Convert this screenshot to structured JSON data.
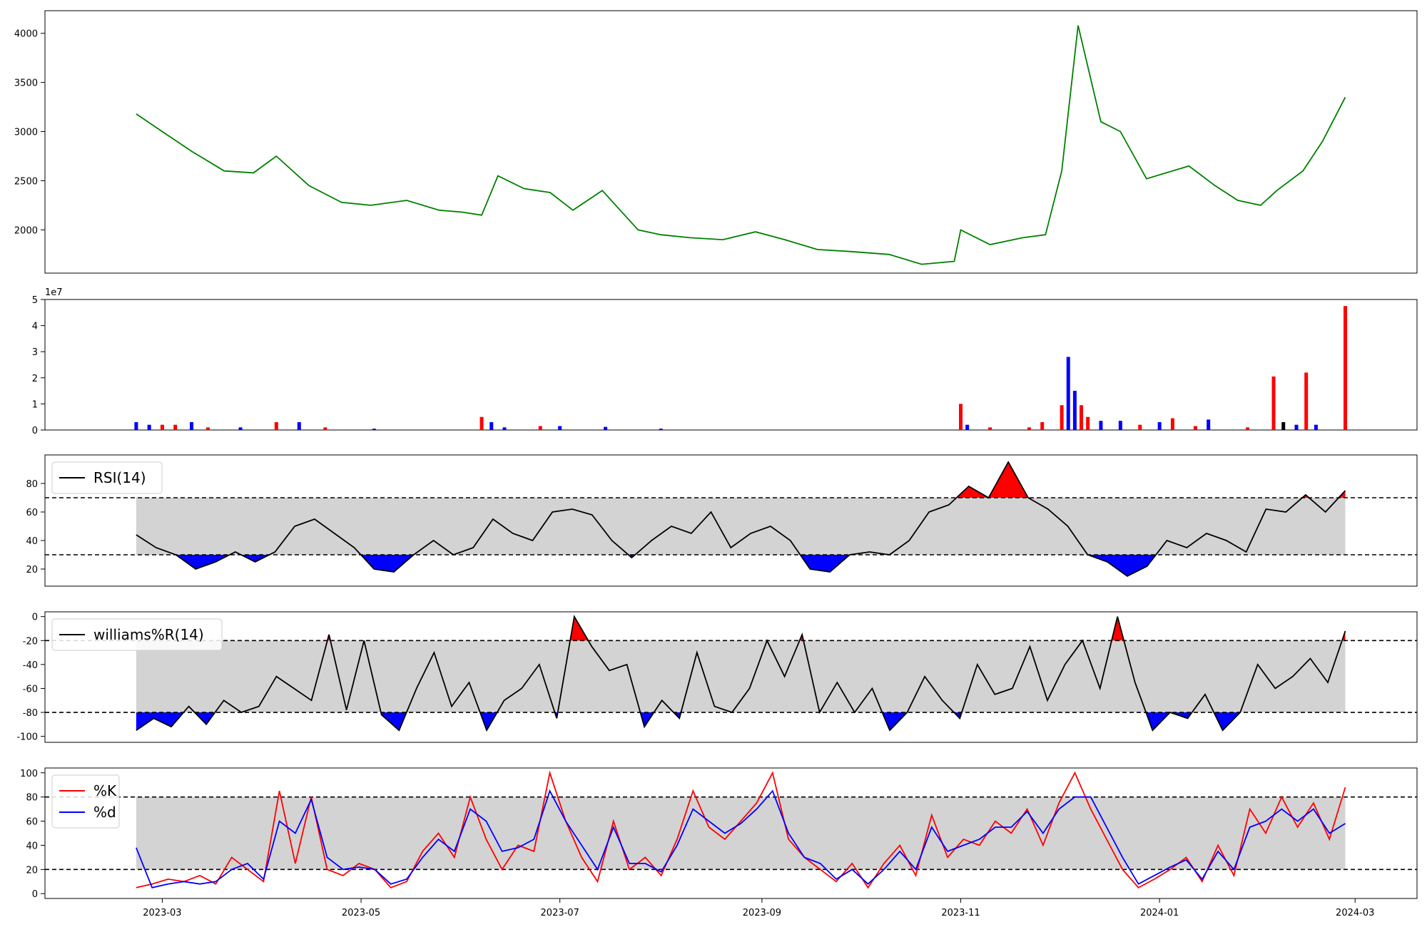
{
  "colors": {
    "price": "#008000",
    "up": "#ff0000",
    "down": "#0000ff",
    "neutral": "#000000",
    "band": "#d3d3d3",
    "k_line": "#ff0000",
    "d_line": "#0000ff"
  },
  "x_axis": {
    "tick_labels": [
      "2023-03",
      "2023-05",
      "2023-07",
      "2023-09",
      "2023-11",
      "2024-01",
      "2024-03"
    ]
  },
  "chart_data": [
    {
      "type": "line",
      "id": "price",
      "x": [
        "2023-02-21",
        "2023-03-01",
        "2023-03-10",
        "2023-03-20",
        "2023-03-29",
        "2023-04-05",
        "2023-04-15",
        "2023-04-25",
        "2023-05-04",
        "2023-05-15",
        "2023-05-25",
        "2023-06-01",
        "2023-06-07",
        "2023-06-12",
        "2023-06-20",
        "2023-06-28",
        "2023-07-05",
        "2023-07-14",
        "2023-07-25",
        "2023-08-01",
        "2023-08-10",
        "2023-08-20",
        "2023-08-30",
        "2023-09-08",
        "2023-09-18",
        "2023-09-28",
        "2023-10-10",
        "2023-10-20",
        "2023-10-30",
        "2023-11-01",
        "2023-11-10",
        "2023-11-20",
        "2023-11-27",
        "2023-12-02",
        "2023-12-07",
        "2023-12-14",
        "2023-12-20",
        "2023-12-28",
        "2024-01-10",
        "2024-01-18",
        "2024-01-25",
        "2024-02-01",
        "2024-02-06",
        "2024-02-14",
        "2024-02-20",
        "2024-02-27"
      ],
      "values": [
        3180,
        3000,
        2800,
        2600,
        2580,
        2750,
        2450,
        2280,
        2250,
        2300,
        2200,
        2180,
        2150,
        2550,
        2420,
        2380,
        2200,
        2400,
        2000,
        1950,
        1920,
        1900,
        1980,
        1900,
        1800,
        1780,
        1750,
        1650,
        1680,
        2000,
        1850,
        1920,
        1950,
        2600,
        4080,
        3100,
        3000,
        2520,
        2650,
        2450,
        2300,
        2250,
        2400,
        2600,
        2900,
        3350
      ],
      "yticks": [
        2000,
        2500,
        3000,
        3500,
        4000
      ],
      "ylim": [
        1560,
        4230
      ]
    },
    {
      "type": "bar",
      "id": "volume",
      "scale_label": "1e7",
      "yticks": [
        0,
        1,
        2,
        3,
        4,
        5
      ],
      "ylim": [
        0,
        5
      ],
      "ylabel": "",
      "bars": [
        {
          "x": "2023-02-21",
          "v": 0.3,
          "c": "down"
        },
        {
          "x": "2023-02-25",
          "v": 0.2,
          "c": "down"
        },
        {
          "x": "2023-03-01",
          "v": 0.2,
          "c": "up"
        },
        {
          "x": "2023-03-05",
          "v": 0.2,
          "c": "up"
        },
        {
          "x": "2023-03-10",
          "v": 0.3,
          "c": "down"
        },
        {
          "x": "2023-03-15",
          "v": 0.1,
          "c": "up"
        },
        {
          "x": "2023-03-25",
          "v": 0.1,
          "c": "down"
        },
        {
          "x": "2023-04-05",
          "v": 0.3,
          "c": "up"
        },
        {
          "x": "2023-04-12",
          "v": 0.3,
          "c": "down"
        },
        {
          "x": "2023-04-20",
          "v": 0.1,
          "c": "up"
        },
        {
          "x": "2023-05-05",
          "v": 0.05,
          "c": "down"
        },
        {
          "x": "2023-06-07",
          "v": 0.5,
          "c": "up"
        },
        {
          "x": "2023-06-10",
          "v": 0.3,
          "c": "down"
        },
        {
          "x": "2023-06-14",
          "v": 0.1,
          "c": "down"
        },
        {
          "x": "2023-06-25",
          "v": 0.15,
          "c": "up"
        },
        {
          "x": "2023-07-01",
          "v": 0.15,
          "c": "down"
        },
        {
          "x": "2023-07-15",
          "v": 0.12,
          "c": "down"
        },
        {
          "x": "2023-08-01",
          "v": 0.05,
          "c": "down"
        },
        {
          "x": "2023-11-01",
          "v": 1.0,
          "c": "up"
        },
        {
          "x": "2023-11-03",
          "v": 0.2,
          "c": "down"
        },
        {
          "x": "2023-11-10",
          "v": 0.1,
          "c": "up"
        },
        {
          "x": "2023-11-22",
          "v": 0.1,
          "c": "up"
        },
        {
          "x": "2023-11-26",
          "v": 0.3,
          "c": "up"
        },
        {
          "x": "2023-12-02",
          "v": 0.95,
          "c": "up"
        },
        {
          "x": "2023-12-04",
          "v": 2.8,
          "c": "down"
        },
        {
          "x": "2023-12-06",
          "v": 1.5,
          "c": "down"
        },
        {
          "x": "2023-12-08",
          "v": 0.95,
          "c": "up"
        },
        {
          "x": "2023-12-10",
          "v": 0.5,
          "c": "up"
        },
        {
          "x": "2023-12-14",
          "v": 0.35,
          "c": "down"
        },
        {
          "x": "2023-12-20",
          "v": 0.35,
          "c": "down"
        },
        {
          "x": "2023-12-26",
          "v": 0.2,
          "c": "up"
        },
        {
          "x": "2024-01-01",
          "v": 0.3,
          "c": "down"
        },
        {
          "x": "2024-01-05",
          "v": 0.45,
          "c": "up"
        },
        {
          "x": "2024-01-12",
          "v": 0.15,
          "c": "up"
        },
        {
          "x": "2024-01-16",
          "v": 0.4,
          "c": "down"
        },
        {
          "x": "2024-01-28",
          "v": 0.1,
          "c": "up"
        },
        {
          "x": "2024-02-05",
          "v": 2.05,
          "c": "up"
        },
        {
          "x": "2024-02-08",
          "v": 0.3,
          "c": "neutral"
        },
        {
          "x": "2024-02-12",
          "v": 0.2,
          "c": "down"
        },
        {
          "x": "2024-02-15",
          "v": 2.2,
          "c": "up"
        },
        {
          "x": "2024-02-18",
          "v": 0.2,
          "c": "down"
        },
        {
          "x": "2024-02-27",
          "v": 4.75,
          "c": "up"
        }
      ]
    },
    {
      "type": "line",
      "id": "rsi",
      "series": [
        {
          "name": "RSI(14)",
          "values": [
            44,
            35,
            30,
            20,
            25,
            32,
            25,
            32,
            50,
            55,
            45,
            35,
            20,
            18,
            30,
            40,
            30,
            35,
            55,
            45,
            40,
            60,
            62,
            58,
            40,
            28,
            40,
            50,
            45,
            60,
            35,
            45,
            50,
            40,
            20,
            18,
            30,
            32,
            30,
            40,
            60,
            65,
            78,
            70,
            95,
            70,
            62,
            50,
            30,
            25,
            15,
            22,
            40,
            35,
            45,
            40,
            32,
            62,
            60,
            72,
            60,
            75
          ]
        }
      ],
      "x_start": "2023-02-21",
      "x_end": "2024-02-27",
      "yticks": [
        20,
        40,
        60,
        80
      ],
      "ylim": [
        8,
        100
      ],
      "thresholds": [
        30,
        70
      ]
    },
    {
      "type": "line",
      "id": "williams",
      "series": [
        {
          "name": "williams%R(14)",
          "values": [
            -95,
            -85,
            -92,
            -75,
            -90,
            -70,
            -80,
            -75,
            -50,
            -60,
            -70,
            -15,
            -78,
            -20,
            -82,
            -95,
            -60,
            -30,
            -75,
            -55,
            -95,
            -70,
            -60,
            -40,
            -85,
            0,
            -25,
            -45,
            -40,
            -92,
            -70,
            -85,
            -30,
            -75,
            -80,
            -60,
            -20,
            -50,
            -15,
            -80,
            -55,
            -80,
            -60,
            -95,
            -80,
            -50,
            -70,
            -85,
            -40,
            -65,
            -60,
            -25,
            -70,
            -40,
            -20,
            -60,
            0,
            -55,
            -95,
            -80,
            -85,
            -65,
            -95,
            -80,
            -40,
            -60,
            -50,
            -35,
            -55,
            -12
          ]
        }
      ],
      "x_start": "2023-02-21",
      "x_end": "2024-02-27",
      "yticks": [
        0,
        -20,
        -40,
        -60,
        -80,
        -100
      ],
      "ylim": [
        -105,
        4
      ],
      "thresholds": [
        -80,
        -20
      ]
    },
    {
      "type": "line",
      "id": "stochastic",
      "series": [
        {
          "name": "%K",
          "values": [
            5,
            8,
            12,
            10,
            15,
            8,
            30,
            20,
            10,
            85,
            25,
            80,
            20,
            15,
            25,
            20,
            5,
            10,
            35,
            50,
            30,
            80,
            45,
            20,
            40,
            35,
            100,
            60,
            30,
            10,
            60,
            20,
            30,
            15,
            45,
            85,
            55,
            45,
            60,
            75,
            100,
            45,
            30,
            20,
            10,
            25,
            5,
            25,
            40,
            15,
            65,
            30,
            45,
            40,
            60,
            50,
            70,
            40,
            75,
            100,
            70,
            45,
            20,
            5,
            12,
            20,
            30,
            10,
            40,
            15,
            70,
            50,
            80,
            55,
            75,
            45,
            88
          ]
        },
        {
          "name": "%d",
          "values": [
            38,
            5,
            8,
            10,
            8,
            10,
            20,
            25,
            12,
            60,
            50,
            78,
            30,
            20,
            22,
            20,
            8,
            12,
            30,
            45,
            35,
            70,
            60,
            35,
            38,
            45,
            85,
            60,
            40,
            20,
            55,
            25,
            25,
            18,
            40,
            70,
            60,
            50,
            58,
            70,
            85,
            50,
            30,
            25,
            12,
            20,
            8,
            20,
            35,
            20,
            55,
            35,
            40,
            45,
            55,
            55,
            68,
            50,
            70,
            80,
            80,
            55,
            30,
            8,
            15,
            22,
            28,
            12,
            35,
            20,
            55,
            60,
            70,
            60,
            70,
            50,
            58
          ]
        }
      ],
      "x_start": "2023-02-21",
      "x_end": "2024-02-27",
      "yticks": [
        0,
        20,
        40,
        60,
        80,
        100
      ],
      "ylim": [
        -4,
        104
      ],
      "thresholds": [
        20,
        80
      ]
    }
  ]
}
